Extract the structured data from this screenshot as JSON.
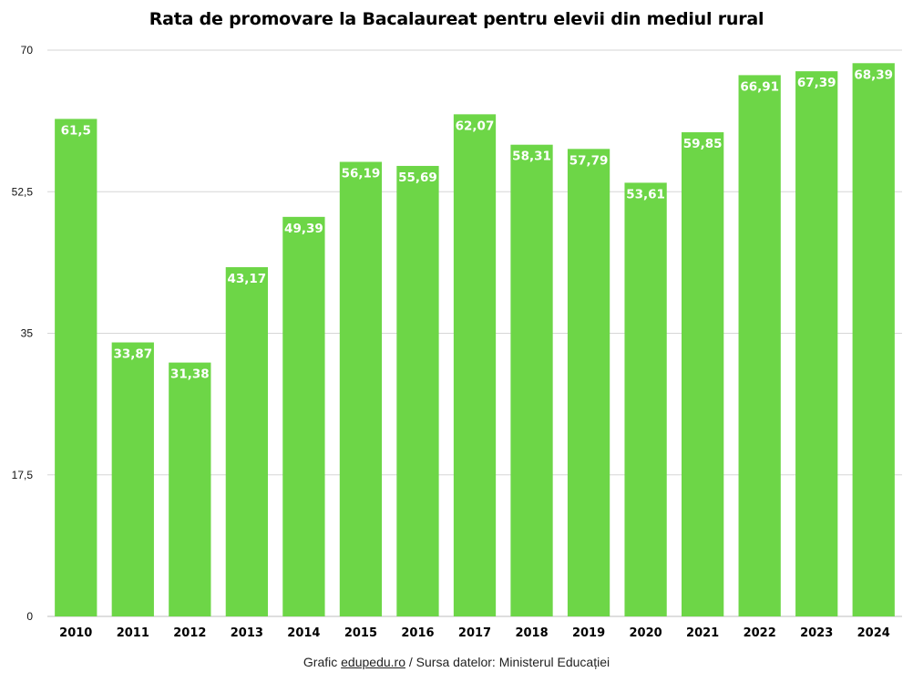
{
  "chart_data": {
    "type": "bar",
    "title": "Rata de promovare la Bacalaureat pentru elevii din mediul rural",
    "categories": [
      "2010",
      "2011",
      "2012",
      "2013",
      "2014",
      "2015",
      "2016",
      "2017",
      "2018",
      "2019",
      "2020",
      "2021",
      "2022",
      "2023",
      "2024"
    ],
    "values": [
      61.5,
      33.87,
      31.38,
      43.17,
      49.39,
      56.19,
      55.69,
      62.07,
      58.31,
      57.79,
      53.61,
      59.85,
      66.91,
      67.39,
      68.39
    ],
    "value_labels": [
      "61,5",
      "33,87",
      "31,38",
      "43,17",
      "49,39",
      "56,19",
      "55,69",
      "62,07",
      "58,31",
      "57,79",
      "53,61",
      "59,85",
      "66,91",
      "67,39",
      "68,39"
    ],
    "ylim": [
      0,
      70
    ],
    "yticks": [
      0,
      17.5,
      35,
      52.5,
      70
    ],
    "ytick_labels": [
      "0",
      "17,5",
      "35",
      "52,5",
      "70"
    ],
    "grid": true,
    "bar_color": "#6dd647",
    "xlabel": "",
    "ylabel": ""
  },
  "footer": {
    "prefix": "Grafic ",
    "link": "edupedu.ro",
    "suffix": " / Sursa datelor: Ministerul Educației"
  }
}
